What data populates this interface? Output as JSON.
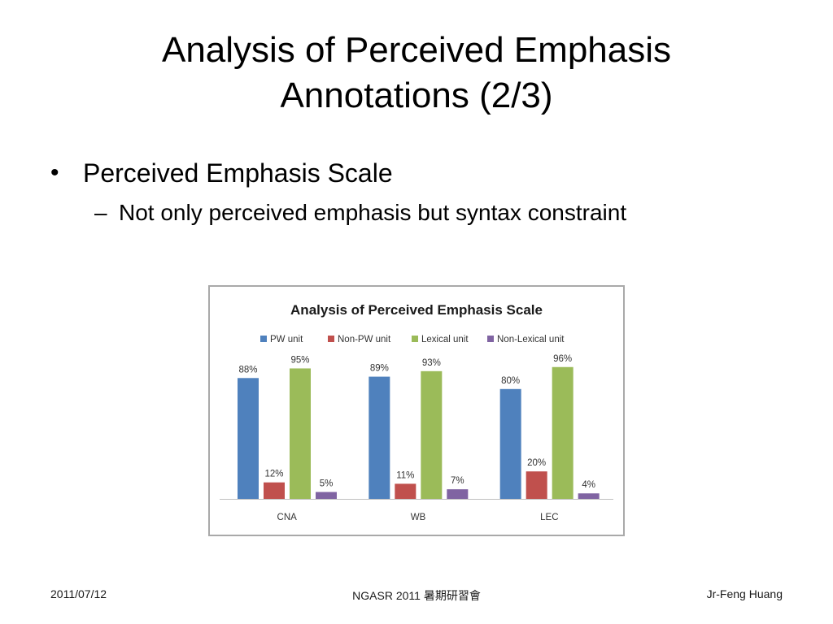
{
  "slide": {
    "title_line1": "Analysis of Perceived Emphasis",
    "title_line2": "Annotations (2/3)",
    "bullet1": "Perceived Emphasis Scale",
    "bullet2": "Not only perceived emphasis but syntax constraint",
    "bullet_marker": "•",
    "dash_marker": "–"
  },
  "footer": {
    "date": "2011/07/12",
    "center": "NGASR 2011 暑期研習會",
    "author": "Jr-Feng Huang"
  },
  "chart_data": {
    "type": "bar",
    "title": "Analysis of Perceived Emphasis Scale",
    "categories": [
      "CNA",
      "WB",
      "LEC"
    ],
    "series": [
      {
        "name": "PW unit",
        "values": [
          88,
          89,
          80
        ],
        "labels": [
          "88%",
          "89%",
          "80%"
        ],
        "color": "#4f81bd"
      },
      {
        "name": "Non-PW unit",
        "values": [
          12,
          11,
          20
        ],
        "labels": [
          "12%",
          "11%",
          "20%"
        ],
        "color": "#c0504d"
      },
      {
        "name": "Lexical unit",
        "values": [
          95,
          93,
          96
        ],
        "labels": [
          "95%",
          "93%",
          "96%"
        ],
        "color": "#9bbb59"
      },
      {
        "name": "Non-Lexical unit",
        "values": [
          5,
          7,
          4
        ],
        "labels": [
          "5%",
          "7%",
          "4%"
        ],
        "color": "#8064a2"
      }
    ],
    "ylim": [
      0,
      100
    ],
    "grid": false,
    "legend_position": "top"
  }
}
